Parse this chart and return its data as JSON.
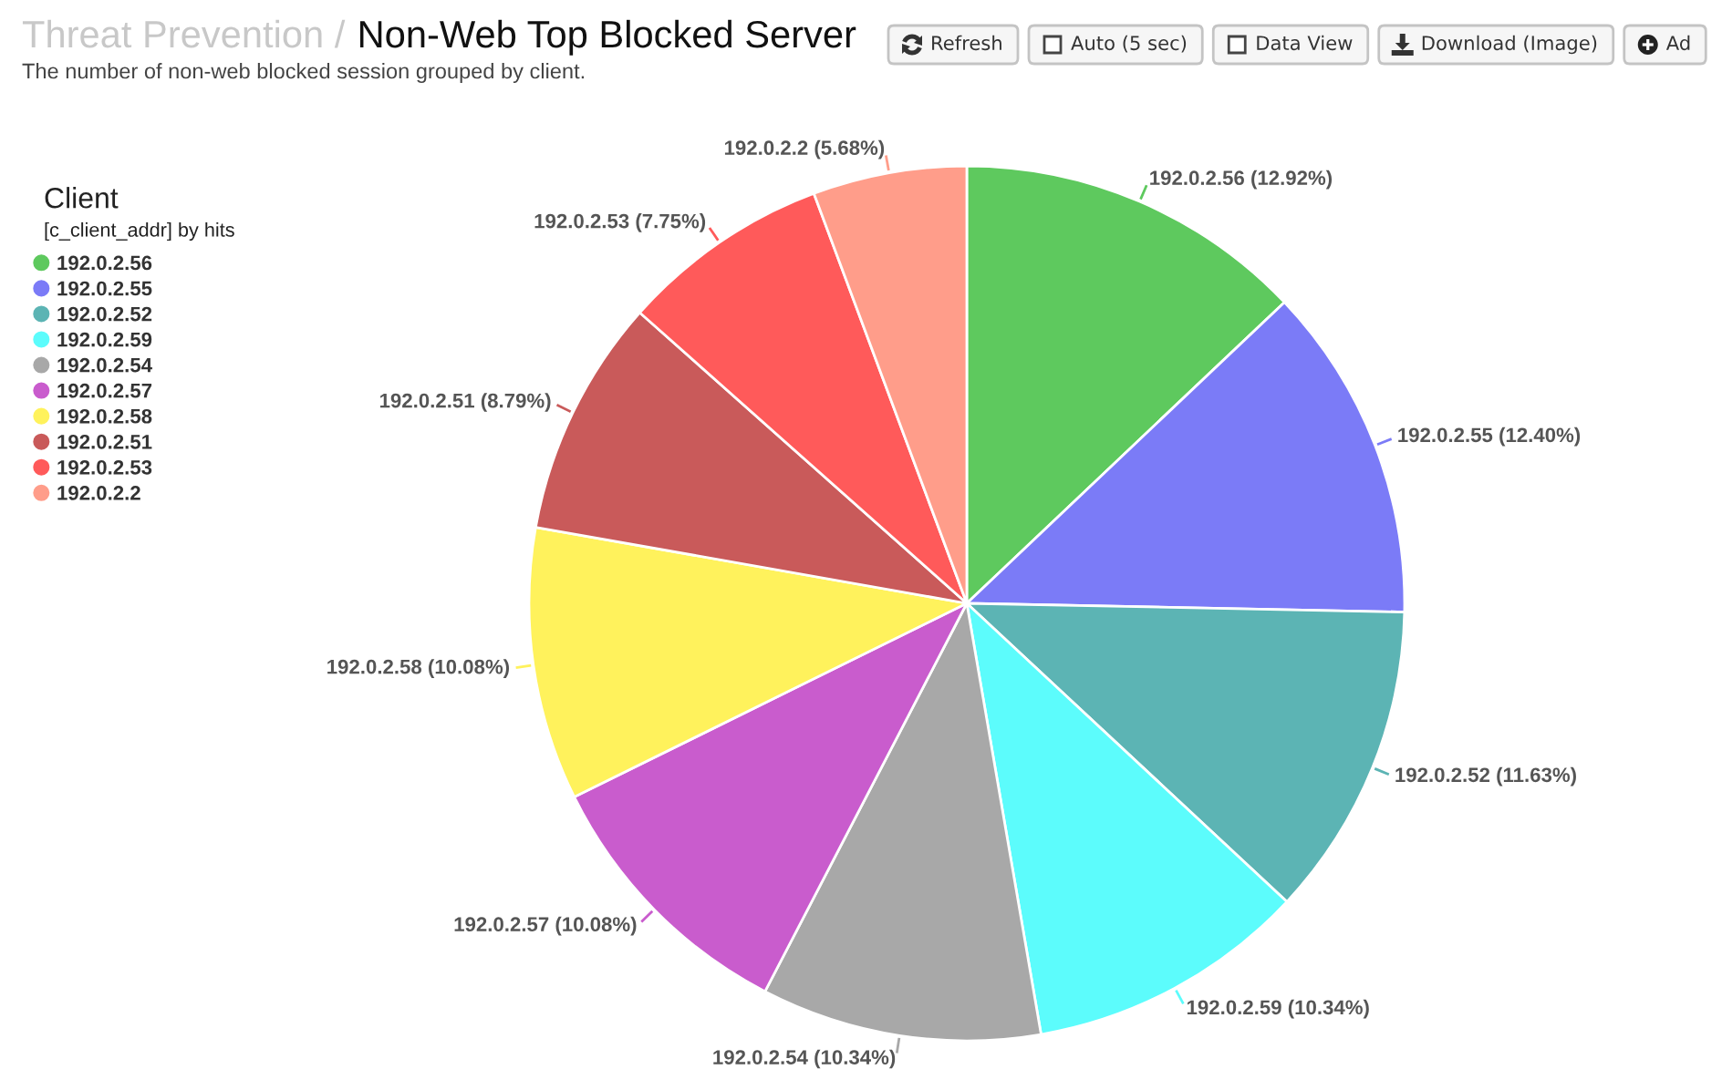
{
  "chart_data": {
    "type": "pie",
    "title": "Threat Prevention / Non-Web Top Blocked Server",
    "subtitle": "The number of non-web blocked session grouped by client.",
    "legend_title": "Client\n[c_client_addr] by hits",
    "legend": "top left",
    "categories": [
      "192.0.2.56",
      "192.0.2.55",
      "192.0.2.52",
      "192.0.2.59",
      "192.0.2.54",
      "192.0.2.57",
      "192.0.2.58",
      "192.0.2.51",
      "192.0.2.53",
      "192.0.2.2"
    ],
    "values": [
      12.92,
      12.4,
      11.63,
      10.34,
      10.34,
      10.08,
      10.08,
      8.79,
      7.75,
      5.68
    ],
    "colors": [
      "#5ec95e",
      "#7b7bf7",
      "#5cb4b4",
      "#5cfcfc",
      "#a8a8a8",
      "#c95ccd",
      "#fff25c",
      "#c95a5a",
      "#ff5a5a",
      "#ff9d8a"
    ],
    "value_labels": [
      "192.0.2.56 (12.92%)",
      "192.0.2.55 (12.40%)",
      "192.0.2.52 (11.63%)",
      "192.0.2.59 (10.34%)",
      "192.0.2.54 (10.34%)",
      "192.0.2.57 (10.08%)",
      "192.0.2.58 (10.08%)",
      "192.0.2.51 (8.79%)",
      "192.0.2.53 (7.75%)",
      "192.0.2.2 (5.68%)"
    ],
    "annotations": [
      "Refresh",
      "Auto (5 sec)",
      "Data View",
      "Download (Image)",
      "Ad"
    ]
  }
}
